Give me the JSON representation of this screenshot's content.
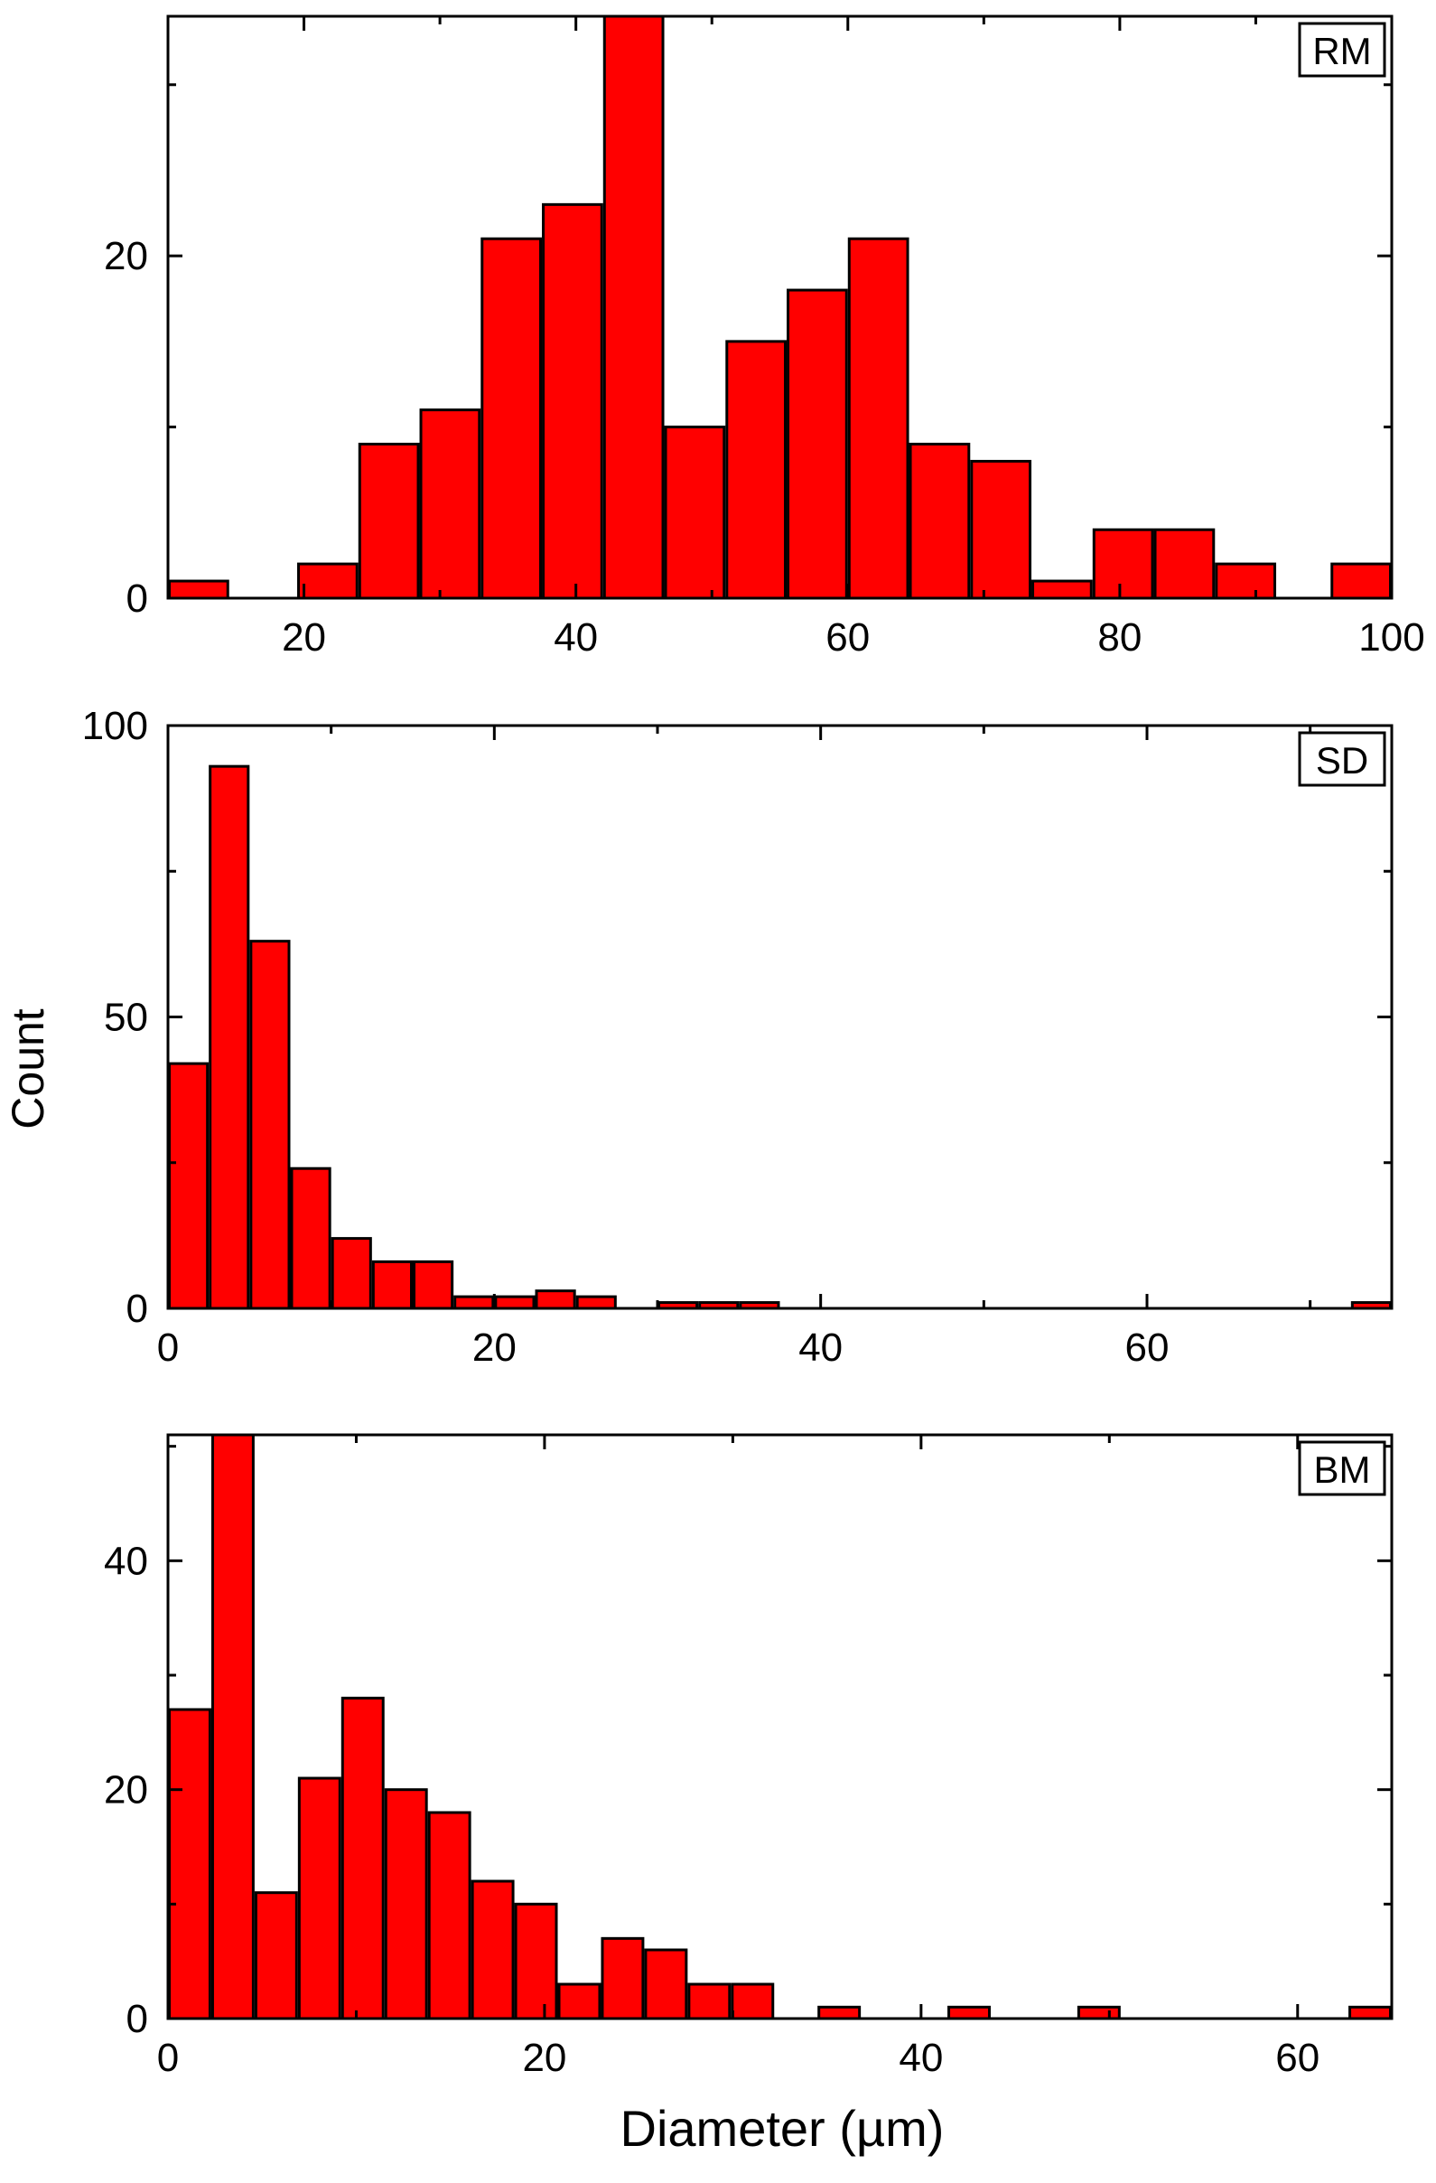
{
  "ylabel": "Count",
  "xlabel": "Diameter (µm)",
  "bar_color": "#ff0000",
  "chart_data": [
    {
      "type": "bar",
      "name": "RM",
      "label": "RM",
      "xlabel": "",
      "ylabel": "",
      "xlim": [
        10,
        100
      ],
      "ylim": [
        0,
        34
      ],
      "xticks": [
        20,
        40,
        60,
        80,
        100
      ],
      "yticks": [
        0,
        20
      ],
      "grid": false,
      "bars": [
        {
          "x0": 10,
          "x1": 14.5,
          "y": 1
        },
        {
          "x0": 19.5,
          "x1": 24,
          "y": 2
        },
        {
          "x0": 24,
          "x1": 28.5,
          "y": 9
        },
        {
          "x0": 28.5,
          "x1": 33,
          "y": 11
        },
        {
          "x0": 33,
          "x1": 37.5,
          "y": 21
        },
        {
          "x0": 37.5,
          "x1": 42,
          "y": 23
        },
        {
          "x0": 42,
          "x1": 46.5,
          "y": 34
        },
        {
          "x0": 46.5,
          "x1": 51,
          "y": 10
        },
        {
          "x0": 51,
          "x1": 55.5,
          "y": 15
        },
        {
          "x0": 55.5,
          "x1": 60,
          "y": 18
        },
        {
          "x0": 60,
          "x1": 64.5,
          "y": 21
        },
        {
          "x0": 64.5,
          "x1": 69,
          "y": 9
        },
        {
          "x0": 69,
          "x1": 73.5,
          "y": 8
        },
        {
          "x0": 73.5,
          "x1": 78,
          "y": 1
        },
        {
          "x0": 78,
          "x1": 82.5,
          "y": 4
        },
        {
          "x0": 82.5,
          "x1": 87,
          "y": 4
        },
        {
          "x0": 87,
          "x1": 91.5,
          "y": 2
        },
        {
          "x0": 95.5,
          "x1": 100,
          "y": 2
        }
      ]
    },
    {
      "type": "bar",
      "name": "SD",
      "label": "SD",
      "xlabel": "",
      "ylabel": "Count",
      "xlim": [
        0,
        75
      ],
      "ylim": [
        0,
        100
      ],
      "xticks": [
        0,
        20,
        40,
        60
      ],
      "yticks": [
        0,
        50,
        100
      ],
      "grid": false,
      "bars": [
        {
          "x0": 0,
          "x1": 2.5,
          "y": 42
        },
        {
          "x0": 2.5,
          "x1": 5,
          "y": 93
        },
        {
          "x0": 5,
          "x1": 7.5,
          "y": 63
        },
        {
          "x0": 7.5,
          "x1": 10,
          "y": 24
        },
        {
          "x0": 10,
          "x1": 12.5,
          "y": 12
        },
        {
          "x0": 12.5,
          "x1": 15,
          "y": 8
        },
        {
          "x0": 15,
          "x1": 17.5,
          "y": 8
        },
        {
          "x0": 17.5,
          "x1": 20,
          "y": 2
        },
        {
          "x0": 20,
          "x1": 22.5,
          "y": 2
        },
        {
          "x0": 22.5,
          "x1": 25,
          "y": 3
        },
        {
          "x0": 25,
          "x1": 27.5,
          "y": 2
        },
        {
          "x0": 30,
          "x1": 32.5,
          "y": 1
        },
        {
          "x0": 32.5,
          "x1": 35,
          "y": 1
        },
        {
          "x0": 35,
          "x1": 37.5,
          "y": 1
        },
        {
          "x0": 72.5,
          "x1": 75,
          "y": 1
        }
      ]
    },
    {
      "type": "bar",
      "name": "BM",
      "label": "BM",
      "xlabel": "Diameter (µm)",
      "ylabel": "",
      "xlim": [
        0,
        65
      ],
      "ylim": [
        0,
        51
      ],
      "xticks": [
        0,
        20,
        40,
        60
      ],
      "yticks": [
        0,
        20,
        40
      ],
      "grid": false,
      "bars": [
        {
          "x0": 0,
          "x1": 2.3,
          "y": 27
        },
        {
          "x0": 2.3,
          "x1": 4.6,
          "y": 51
        },
        {
          "x0": 4.6,
          "x1": 6.9,
          "y": 11
        },
        {
          "x0": 6.9,
          "x1": 9.2,
          "y": 21
        },
        {
          "x0": 9.2,
          "x1": 11.5,
          "y": 28
        },
        {
          "x0": 11.5,
          "x1": 13.8,
          "y": 20
        },
        {
          "x0": 13.8,
          "x1": 16.1,
          "y": 18
        },
        {
          "x0": 16.1,
          "x1": 18.4,
          "y": 12
        },
        {
          "x0": 18.4,
          "x1": 20.7,
          "y": 10
        },
        {
          "x0": 20.7,
          "x1": 23,
          "y": 3
        },
        {
          "x0": 23,
          "x1": 25.3,
          "y": 7
        },
        {
          "x0": 25.3,
          "x1": 27.6,
          "y": 6
        },
        {
          "x0": 27.6,
          "x1": 29.9,
          "y": 3
        },
        {
          "x0": 29.9,
          "x1": 32.2,
          "y": 3
        },
        {
          "x0": 34.5,
          "x1": 36.8,
          "y": 1
        },
        {
          "x0": 41.4,
          "x1": 43.7,
          "y": 1
        },
        {
          "x0": 48.3,
          "x1": 50.6,
          "y": 1
        },
        {
          "x0": 62.7,
          "x1": 65,
          "y": 1
        }
      ]
    }
  ]
}
